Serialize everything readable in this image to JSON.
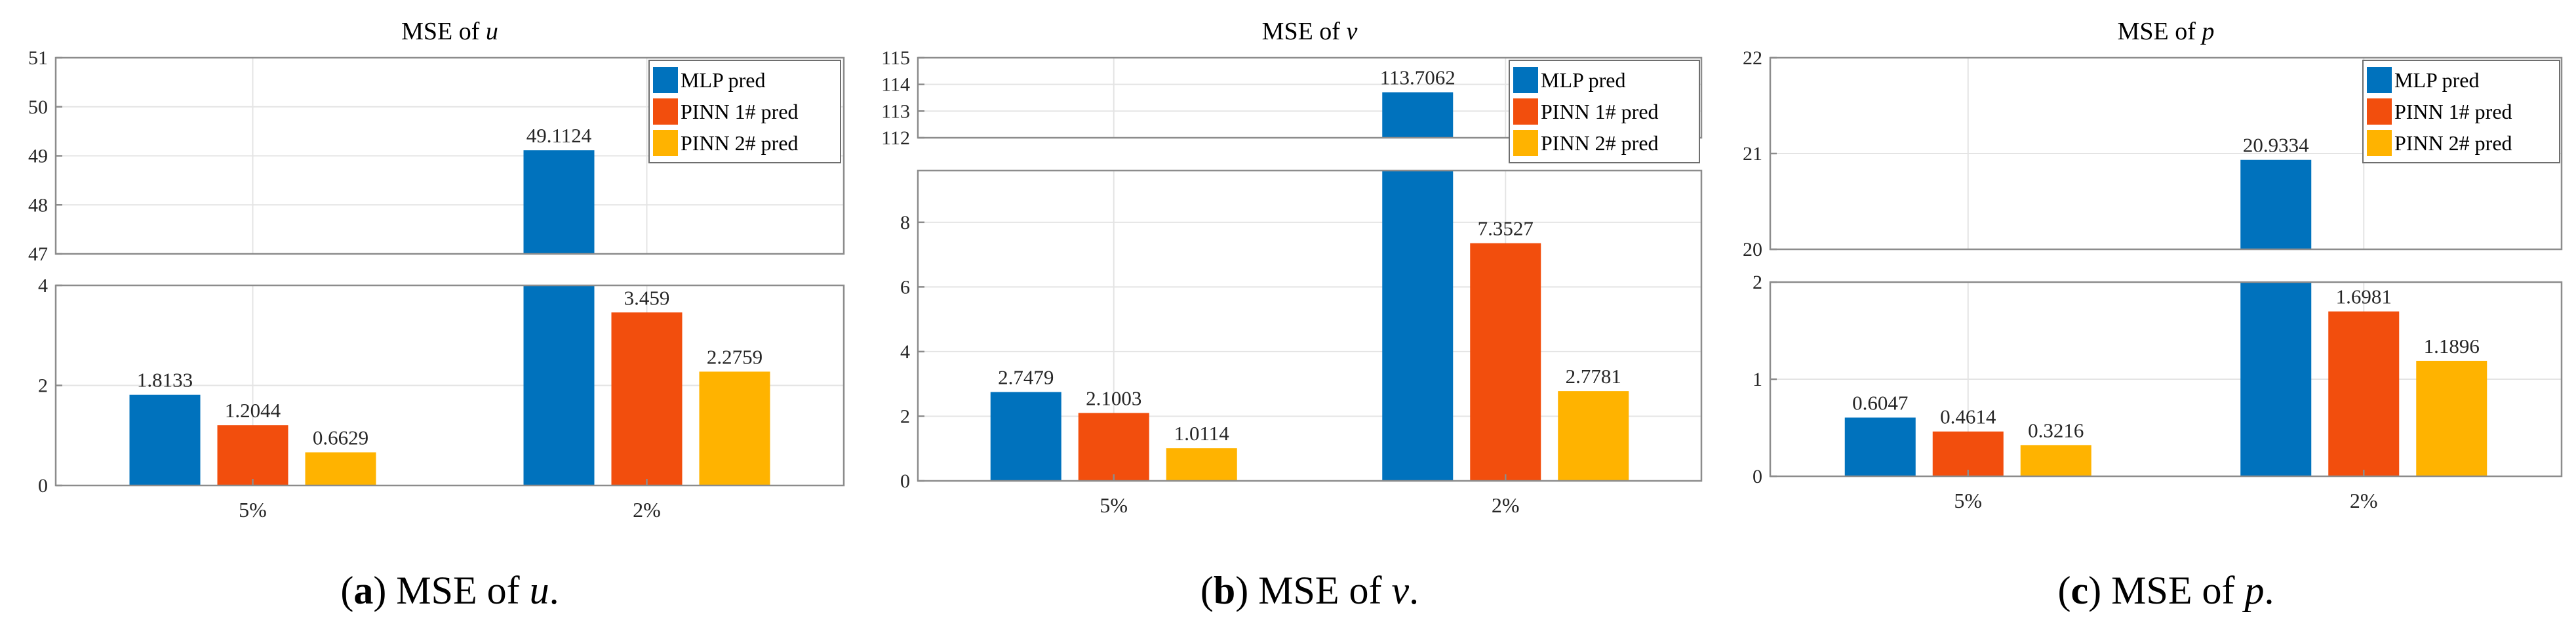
{
  "series_colors": [
    "#0072BD",
    "#F24E0D",
    "#FFB300"
  ],
  "chart_data": [
    {
      "type": "bar",
      "title_prefix": "MSE of ",
      "variable": "u",
      "caption_letter": "a",
      "caption_text": "MSE of ",
      "caption_var": "u",
      "caption_end": ".",
      "categories": [
        "5%",
        "2%"
      ],
      "series": [
        {
          "name": "MLP pred",
          "values": [
            1.8133,
            49.1124
          ],
          "labels": [
            "1.8133",
            "49.1124"
          ]
        },
        {
          "name": "PINN 1# pred",
          "values": [
            1.2044,
            3.459
          ],
          "labels": [
            "1.2044",
            "3.459"
          ]
        },
        {
          "name": "PINN 2# pred",
          "values": [
            0.6629,
            2.2759
          ],
          "labels": [
            "0.6629",
            "2.2759"
          ]
        }
      ],
      "axis_break": true,
      "upper_ylim": [
        47,
        51
      ],
      "upper_ticks": [
        "47",
        "48",
        "49",
        "50",
        "51"
      ],
      "lower_ylim": [
        0,
        4
      ],
      "lower_ticks": [
        "0",
        "2",
        "4"
      ],
      "grid": true,
      "legend_position": "top-right"
    },
    {
      "type": "bar",
      "title_prefix": "MSE of ",
      "variable": "v",
      "caption_letter": "b",
      "caption_text": "MSE of ",
      "caption_var": "v",
      "caption_end": ".",
      "categories": [
        "5%",
        "2%"
      ],
      "series": [
        {
          "name": "MLP pred",
          "values": [
            2.7479,
            113.7062
          ],
          "labels": [
            "2.7479",
            "113.7062"
          ]
        },
        {
          "name": "PINN 1# pred",
          "values": [
            2.1003,
            7.3527
          ],
          "labels": [
            "2.1003",
            "7.3527"
          ]
        },
        {
          "name": "PINN 2# pred",
          "values": [
            1.0114,
            2.7781
          ],
          "labels": [
            "1.0114",
            "2.7781"
          ]
        }
      ],
      "axis_break": true,
      "upper_ylim": [
        112,
        115
      ],
      "upper_ticks": [
        "112",
        "113",
        "114",
        "115"
      ],
      "lower_ylim": [
        0,
        9.6
      ],
      "lower_ticks": [
        "0",
        "2",
        "4",
        "6",
        "8"
      ],
      "grid": true,
      "legend_position": "top-right"
    },
    {
      "type": "bar",
      "title_prefix": "MSE of ",
      "variable": "p",
      "caption_letter": "c",
      "caption_text": "MSE of ",
      "caption_var": "p",
      "caption_end": ".",
      "categories": [
        "5%",
        "2%"
      ],
      "series": [
        {
          "name": "MLP pred",
          "values": [
            0.6047,
            20.9334
          ],
          "labels": [
            "0.6047",
            "20.9334"
          ]
        },
        {
          "name": "PINN 1# pred",
          "values": [
            0.4614,
            1.6981
          ],
          "labels": [
            "0.4614",
            "1.6981"
          ]
        },
        {
          "name": "PINN 2# pred",
          "values": [
            0.3216,
            1.1896
          ],
          "labels": [
            "0.3216",
            "1.1896"
          ]
        }
      ],
      "axis_break": true,
      "upper_ylim": [
        20,
        22
      ],
      "upper_ticks": [
        "20",
        "21",
        "22"
      ],
      "lower_ylim": [
        0,
        2
      ],
      "lower_ticks": [
        "0",
        "1",
        "2"
      ],
      "grid": true,
      "legend_position": "top-right"
    }
  ]
}
